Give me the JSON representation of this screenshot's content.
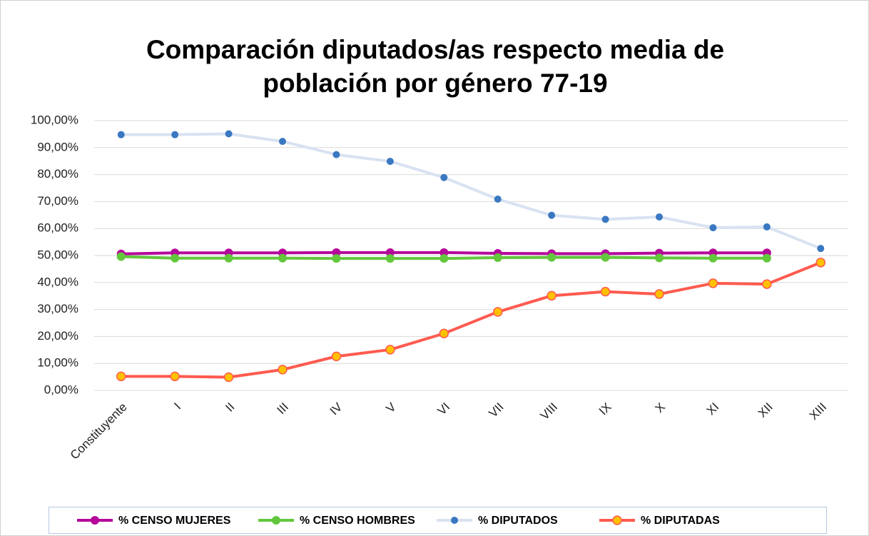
{
  "chart_data": {
    "type": "line",
    "title": [
      "Comparación diputados/as respecto media de",
      "población por género 77-19"
    ],
    "categories": [
      "Constituyente",
      "I",
      "II",
      "III",
      "IV",
      "V",
      "VI",
      "VII",
      "VIII",
      "IX",
      "X",
      "XI",
      "XII",
      "XIII"
    ],
    "series": [
      {
        "name": "% CENSO MUJERES",
        "color": "#b5089b",
        "values": [
          50.6,
          51.0,
          51.0,
          51.0,
          51.1,
          51.1,
          51.1,
          50.8,
          50.7,
          50.7,
          50.9,
          51.0,
          51.0,
          null
        ]
      },
      {
        "name": "% CENSO HOMBRES",
        "color": "#62c73c",
        "values": [
          49.6,
          49.0,
          49.0,
          49.0,
          48.9,
          48.9,
          48.9,
          49.2,
          49.3,
          49.3,
          49.1,
          49.0,
          49.0,
          null
        ]
      },
      {
        "name": "% DIPUTADOS",
        "color": "#d9e2f1",
        "marker_color": "#3a78c2",
        "values": [
          94.8,
          94.8,
          95.1,
          92.3,
          87.4,
          84.9,
          78.9,
          70.9,
          64.9,
          63.4,
          64.3,
          60.3,
          60.6,
          52.6
        ]
      },
      {
        "name": "% DIPUTADAS",
        "color": "#ff5a4f",
        "marker_color": "#ffc000",
        "values": [
          5.2,
          5.2,
          4.9,
          7.7,
          12.6,
          15.1,
          21.1,
          29.1,
          35.1,
          36.6,
          35.7,
          39.7,
          39.4,
          47.4
        ]
      }
    ],
    "ylim": [
      0,
      100
    ],
    "yticks": [
      {
        "value": 0,
        "label": "0,00%"
      },
      {
        "value": 10,
        "label": "10,00%"
      },
      {
        "value": 20,
        "label": "20,00%"
      },
      {
        "value": 30,
        "label": "30,00%"
      },
      {
        "value": 40,
        "label": "40,00%"
      },
      {
        "value": 50,
        "label": "50,00%"
      },
      {
        "value": 60,
        "label": "60,00%"
      },
      {
        "value": 70,
        "label": "70,00%"
      },
      {
        "value": 80,
        "label": "80,00%"
      },
      {
        "value": 90,
        "label": "90,00%"
      },
      {
        "value": 100,
        "label": "100,00%"
      }
    ],
    "grid": true,
    "legend": "bottom"
  }
}
